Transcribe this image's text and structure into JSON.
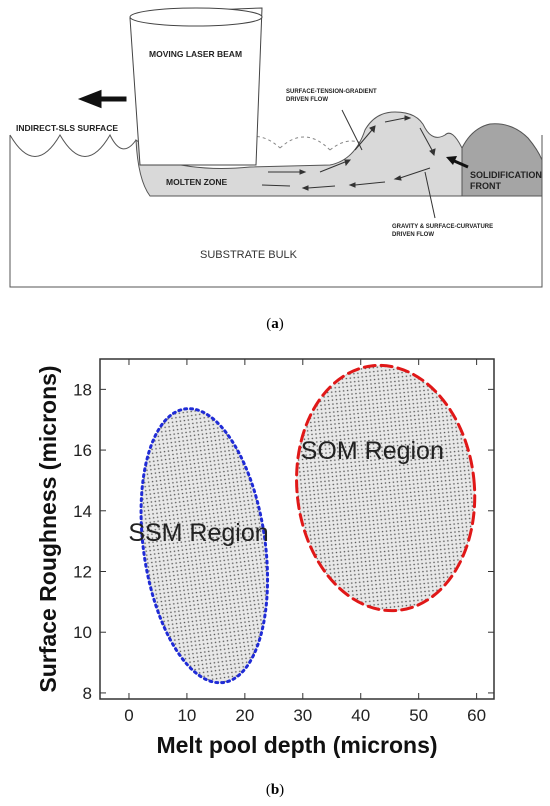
{
  "figure_a": {
    "labels": {
      "laser": "MOVING LASER BEAM",
      "indirect": "INDIRECT-SLS SURFACE",
      "surface_tension": "SURFACE-TENSION-GRADIENT DRIVEN FLOW",
      "molten": "MOLTEN ZONE",
      "solidification": "SOLIDIFICATION FRONT",
      "gravity": "GRAVITY & SURFACE-CURVATURE DRIVEN FLOW",
      "substrate": "SUBSTRATE BULK"
    },
    "caption_letter": "a"
  },
  "figure_b": {
    "caption_letter": "b",
    "chart_data": {
      "type": "scatter",
      "xlabel": "Melt pool depth (microns)",
      "ylabel": "Surface Roughness (microns)",
      "xlim": [
        -5,
        63
      ],
      "ylim": [
        7.8,
        19.0
      ],
      "xticks": [
        0,
        10,
        20,
        30,
        40,
        50,
        60
      ],
      "yticks": [
        8,
        10,
        12,
        14,
        16,
        18
      ],
      "regions": [
        {
          "name": "SSM Region",
          "center": [
            13,
            12.85
          ],
          "rx": 10.5,
          "ry": 4.55,
          "rotation": -8,
          "color": "#1f2bd6",
          "style": "dotted",
          "label_at": [
            12,
            13.0
          ]
        },
        {
          "name": "SOM Region",
          "center": [
            44.3,
            14.75
          ],
          "rx": 15.3,
          "ry": 4.05,
          "rotation": -6,
          "color": "#e01818",
          "style": "dashed",
          "label_at": [
            42,
            15.7
          ]
        }
      ]
    }
  }
}
